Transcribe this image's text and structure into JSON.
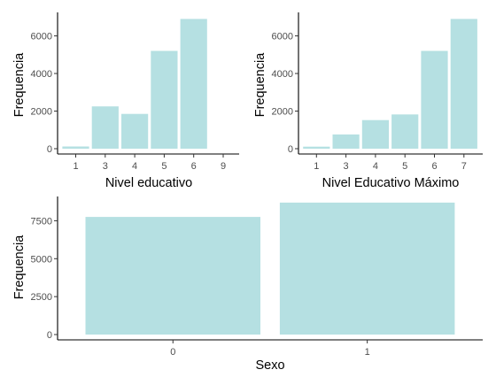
{
  "chart_data": [
    {
      "type": "bar",
      "categories": [
        "1",
        "3",
        "4",
        "5",
        "6",
        "9"
      ],
      "values": [
        120,
        2250,
        1850,
        5200,
        6900,
        0
      ],
      "xlabel": "Nivel educativo",
      "ylabel": "Frequencia",
      "yticks": [
        0,
        2000,
        4000,
        6000
      ],
      "ylim": [
        0,
        7250
      ],
      "bar_color": "#b5e0e2",
      "grid": false
    },
    {
      "type": "bar",
      "categories": [
        "1",
        "3",
        "4",
        "5",
        "6",
        "7"
      ],
      "values": [
        110,
        760,
        1520,
        1820,
        5200,
        6900
      ],
      "xlabel": "Nivel Educativo Máximo",
      "ylabel": "Frequencia",
      "yticks": [
        0,
        2000,
        4000,
        6000
      ],
      "ylim": [
        0,
        7250
      ],
      "bar_color": "#b5e0e2",
      "grid": false
    },
    {
      "type": "bar",
      "categories": [
        "0",
        "1"
      ],
      "values": [
        7750,
        8700
      ],
      "xlabel": "Sexo",
      "ylabel": "Frequencia",
      "yticks": [
        0,
        2500,
        5000,
        7500
      ],
      "ylim": [
        0,
        9100
      ],
      "bar_color": "#b5e0e2",
      "grid": false
    }
  ]
}
